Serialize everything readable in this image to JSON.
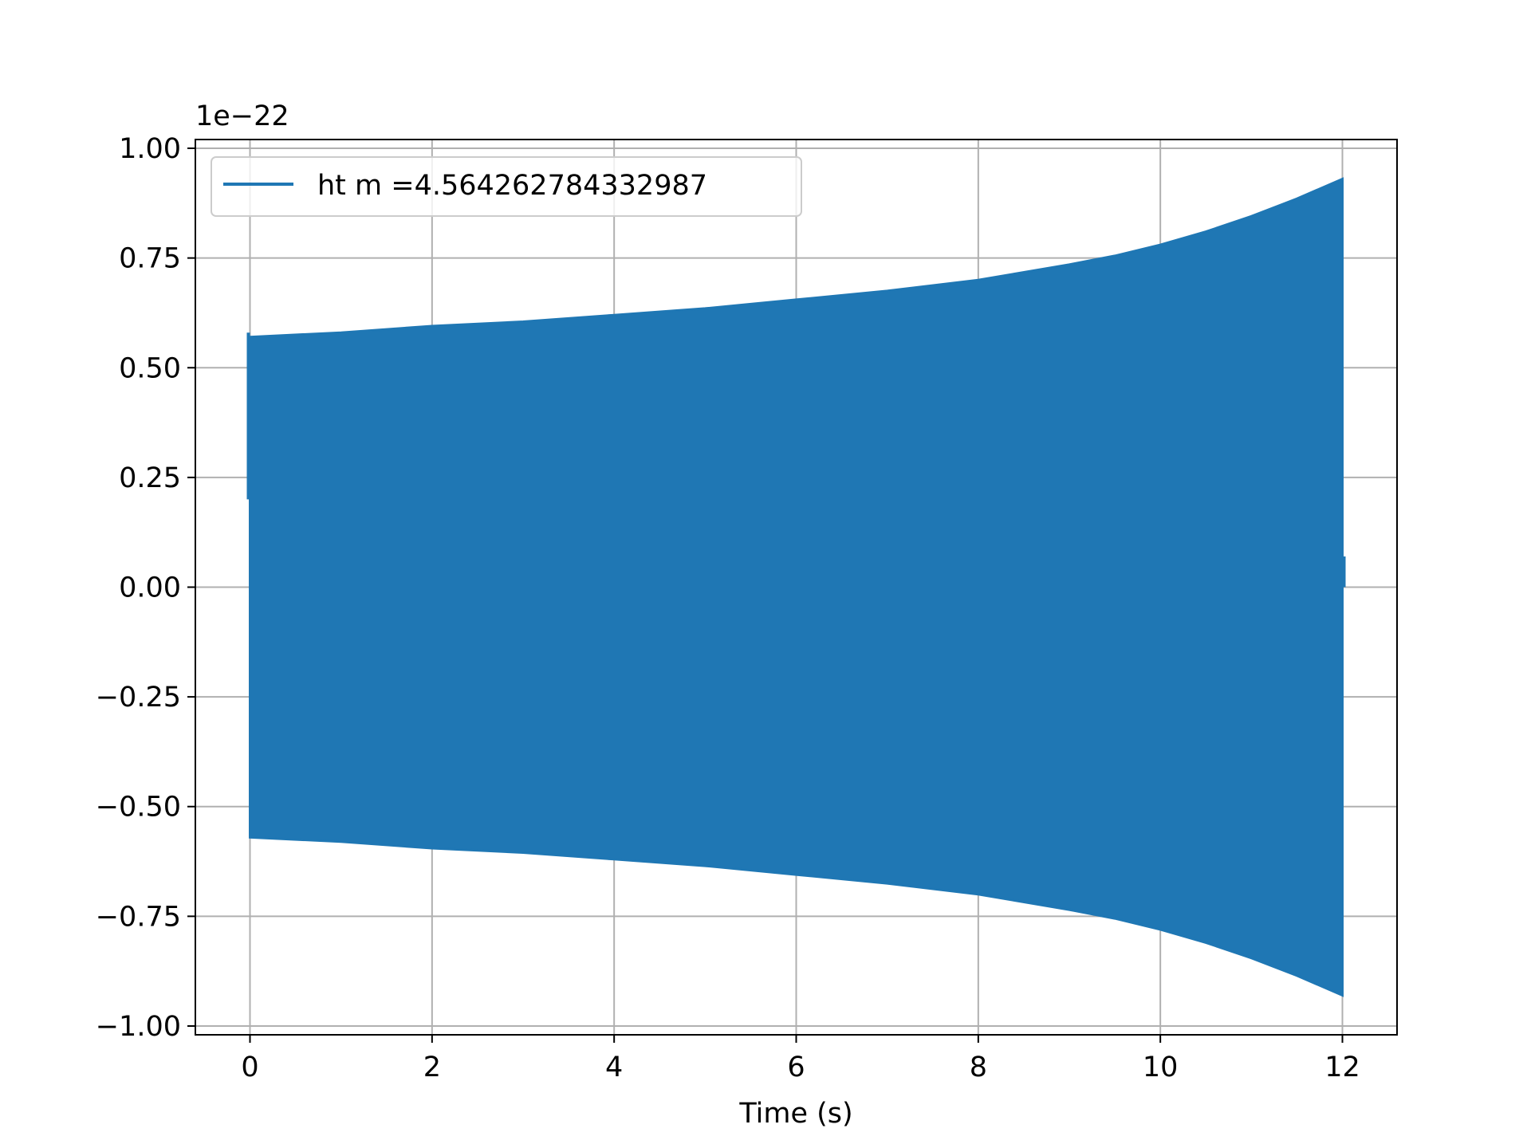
{
  "chart_data": {
    "type": "line",
    "title": "",
    "xlabel": "Time (s)",
    "ylabel": "",
    "y_offset_text": "1e−22",
    "y_scale_factor": 1e-22,
    "xlim": [
      -0.6,
      12.6
    ],
    "ylim": [
      -1.02,
      1.02
    ],
    "xticks": [
      0,
      2,
      4,
      6,
      8,
      10,
      12
    ],
    "xtick_labels": [
      "0",
      "2",
      "4",
      "6",
      "8",
      "10",
      "12"
    ],
    "yticks": [
      1.0,
      0.75,
      0.5,
      0.25,
      0.0,
      -0.25,
      -0.5,
      -0.75,
      -1.0
    ],
    "ytick_labels": [
      "1.00",
      "0.75",
      "0.50",
      "0.25",
      "0.00",
      "−0.25",
      "−0.50",
      "−0.75",
      "−1.00"
    ],
    "grid": true,
    "legend": {
      "position": "upper-left"
    },
    "series": [
      {
        "name": "ht m =4.564262784332987",
        "color": "#1f77b4",
        "envelope_x": [
          0,
          1,
          2,
          3,
          4,
          5,
          6,
          7,
          8,
          9,
          9.5,
          10,
          10.5,
          11,
          11.5,
          12
        ],
        "envelope_upper": [
          0.57,
          0.58,
          0.595,
          0.605,
          0.62,
          0.635,
          0.655,
          0.675,
          0.7,
          0.735,
          0.755,
          0.78,
          0.81,
          0.845,
          0.885,
          0.93
        ],
        "envelope_lower": [
          -0.57,
          -0.58,
          -0.595,
          -0.605,
          -0.62,
          -0.635,
          -0.655,
          -0.675,
          -0.7,
          -0.735,
          -0.755,
          -0.78,
          -0.81,
          -0.845,
          -0.885,
          -0.93
        ],
        "start_value": 0.2,
        "end_value": 0.07
      }
    ]
  }
}
